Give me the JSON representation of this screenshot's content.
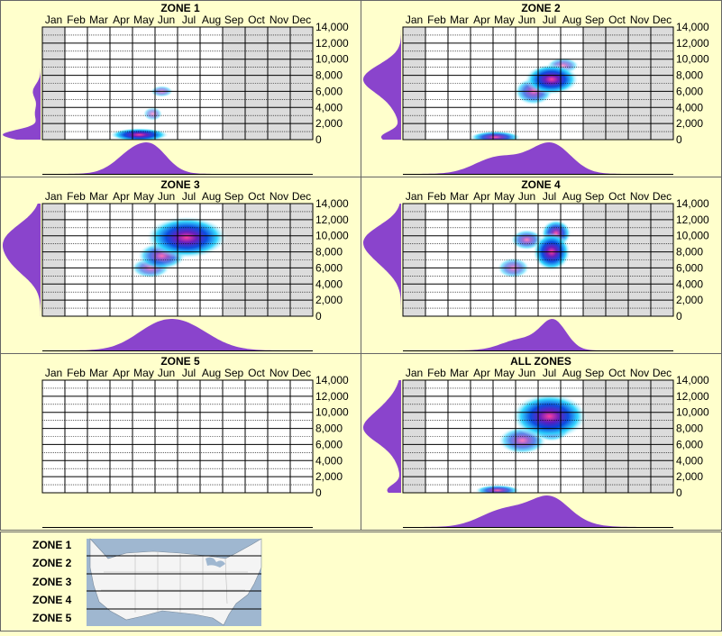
{
  "months": [
    "Jan",
    "Feb",
    "Mar",
    "Apr",
    "May",
    "Jun",
    "Jul",
    "Aug",
    "Sep",
    "Oct",
    "Nov",
    "Dec"
  ],
  "y_ticks": [
    "14,000",
    "12,000",
    "10,000",
    "8,000",
    "6,000",
    "4,000",
    "2,000",
    "0"
  ],
  "colors": {
    "background": "#ffffcc",
    "plot_bg": "#dcdcdc",
    "grid": "#000000",
    "density": "#8a44cc",
    "heat_low": "#00ccff",
    "heat_mid": "#0000cc",
    "heat_high": "#ff3399"
  },
  "chart_data": [
    {
      "type": "heatmap",
      "title": "ZONE 1",
      "ylim": [
        0,
        14000
      ],
      "active_months": [
        1,
        8
      ],
      "blobs": [
        {
          "month": 4.8,
          "elevation": 600,
          "sx": 0.55,
          "sy": 350,
          "w": 1.0
        },
        {
          "month": 5.8,
          "elevation": 6000,
          "sx": 0.35,
          "sy": 500,
          "w": 0.2
        },
        {
          "month": 5.4,
          "elevation": 3200,
          "sx": 0.3,
          "sy": 600,
          "w": 0.15
        }
      ]
    },
    {
      "type": "heatmap",
      "title": "ZONE 2",
      "ylim": [
        0,
        14000
      ],
      "active_months": [
        1,
        8
      ],
      "blobs": [
        {
          "month": 7.1,
          "elevation": 7500,
          "sx": 0.5,
          "sy": 800,
          "w": 1.0
        },
        {
          "month": 6.3,
          "elevation": 6000,
          "sx": 0.6,
          "sy": 1200,
          "w": 0.55
        },
        {
          "month": 4.6,
          "elevation": 300,
          "sx": 0.6,
          "sy": 400,
          "w": 0.8
        },
        {
          "month": 7.6,
          "elevation": 9200,
          "sx": 0.5,
          "sy": 700,
          "w": 0.3
        }
      ]
    },
    {
      "type": "heatmap",
      "title": "ZONE 3",
      "ylim": [
        0,
        14000
      ],
      "active_months": [
        1,
        8
      ],
      "blobs": [
        {
          "month": 6.9,
          "elevation": 9800,
          "sx": 0.75,
          "sy": 1100,
          "w": 1.0
        },
        {
          "month": 5.8,
          "elevation": 7500,
          "sx": 0.75,
          "sy": 1200,
          "w": 0.6
        },
        {
          "month": 5.3,
          "elevation": 6000,
          "sx": 0.6,
          "sy": 900,
          "w": 0.35
        }
      ]
    },
    {
      "type": "heatmap",
      "title": "ZONE 4",
      "ylim": [
        0,
        14000
      ],
      "active_months": [
        1,
        8
      ],
      "blobs": [
        {
          "month": 7.1,
          "elevation": 8000,
          "sx": 0.35,
          "sy": 1000,
          "w": 1.0
        },
        {
          "month": 7.3,
          "elevation": 10300,
          "sx": 0.35,
          "sy": 900,
          "w": 0.8
        },
        {
          "month": 6.0,
          "elevation": 9500,
          "sx": 0.5,
          "sy": 900,
          "w": 0.45
        },
        {
          "month": 5.4,
          "elevation": 6000,
          "sx": 0.5,
          "sy": 900,
          "w": 0.3
        }
      ]
    },
    {
      "type": "heatmap",
      "title": "ZONE 5",
      "ylim": [
        0,
        14000
      ],
      "active_months": null,
      "blobs": []
    },
    {
      "type": "heatmap",
      "title": "ALL ZONES",
      "ylim": [
        0,
        14000
      ],
      "active_months": [
        1,
        8
      ],
      "blobs": [
        {
          "month": 7.0,
          "elevation": 9500,
          "sx": 0.7,
          "sy": 1200,
          "w": 1.0
        },
        {
          "month": 7.1,
          "elevation": 7800,
          "sx": 0.45,
          "sy": 800,
          "w": 0.75
        },
        {
          "month": 5.8,
          "elevation": 6500,
          "sx": 0.75,
          "sy": 1200,
          "w": 0.5
        },
        {
          "month": 4.7,
          "elevation": 300,
          "sx": 0.6,
          "sy": 400,
          "w": 0.7
        }
      ]
    }
  ],
  "legend": {
    "zones": [
      "ZONE 1",
      "ZONE 2",
      "ZONE 3",
      "ZONE 4",
      "ZONE 5"
    ],
    "map_icon": "usa-map-icon"
  }
}
